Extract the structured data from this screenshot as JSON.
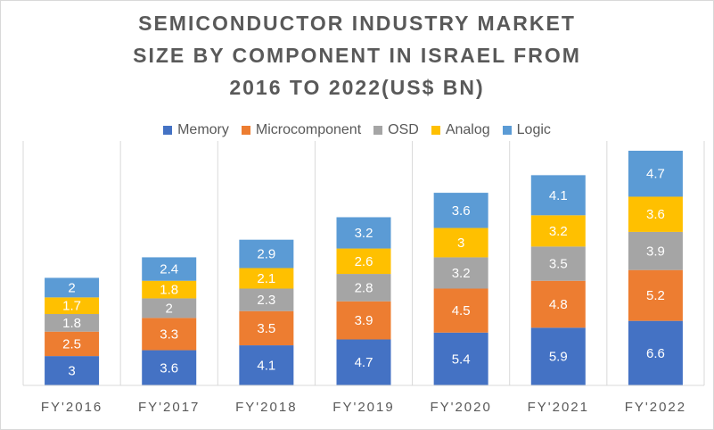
{
  "chart_data": {
    "type": "bar",
    "stacked": true,
    "title_lines": [
      "SEMICONDUCTOR INDUSTRY MARKET",
      "SIZE BY COMPONENT IN ISRAEL FROM",
      "2016 TO 2022(US$ BN)"
    ],
    "categories": [
      "FY'2016",
      "FY'2017",
      "FY'2018",
      "FY'2019",
      "FY'2020",
      "FY'2021",
      "FY'2022"
    ],
    "series": [
      {
        "name": "Memory",
        "color": "#4472c4",
        "values": [
          3,
          3.6,
          4.1,
          4.7,
          5.4,
          5.9,
          6.6
        ]
      },
      {
        "name": "Microcomponent",
        "color": "#ed7d31",
        "values": [
          2.5,
          3.3,
          3.5,
          3.9,
          4.5,
          4.8,
          5.2
        ]
      },
      {
        "name": "OSD",
        "color": "#a5a5a5",
        "values": [
          1.8,
          2,
          2.3,
          2.8,
          3.2,
          3.5,
          3.9
        ]
      },
      {
        "name": "Analog",
        "color": "#ffc000",
        "values": [
          1.7,
          1.8,
          2.1,
          2.6,
          3,
          3.2,
          3.6
        ]
      },
      {
        "name": "Logic",
        "color": "#5b9bd5",
        "values": [
          2,
          2.4,
          2.9,
          3.2,
          3.6,
          4.1,
          4.7
        ]
      }
    ],
    "legend_position": "top",
    "ylim": [
      0,
      25
    ],
    "grid": false
  }
}
